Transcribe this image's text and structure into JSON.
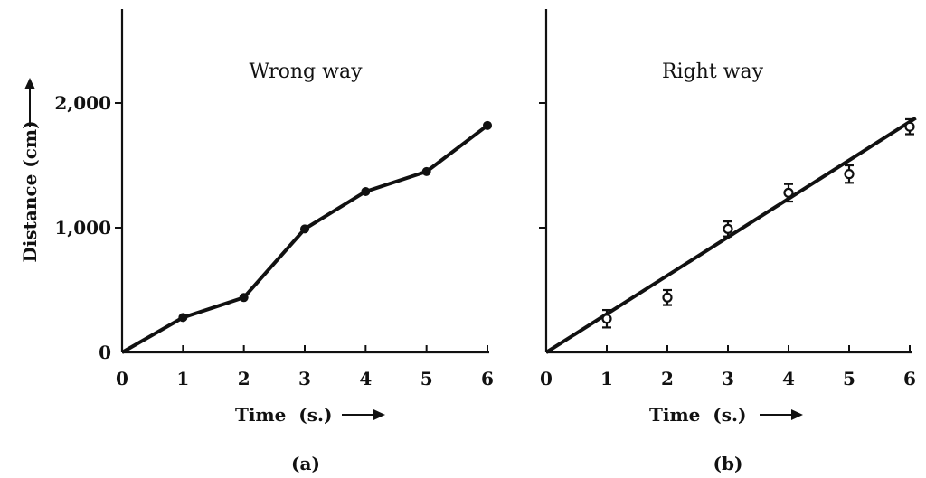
{
  "chart_data": [
    {
      "type": "line",
      "title": "Wrong way",
      "panel_label": "(a)",
      "xlabel": "Time  (s.)",
      "ylabel": "Distance (cm)",
      "x": [
        0,
        1,
        2,
        3,
        4,
        5,
        6
      ],
      "xlim": [
        0,
        6
      ],
      "ylim": [
        0,
        2800
      ],
      "xticks": [
        "0",
        "1",
        "2",
        "3",
        "4",
        "5",
        "6"
      ],
      "yticks": [
        {
          "value": 0,
          "label": "0"
        },
        {
          "value": 1000,
          "label": "1,000"
        },
        {
          "value": 2000,
          "label": "2,000"
        }
      ],
      "series": [
        {
          "values": [
            0,
            280,
            440,
            990,
            1290,
            1450,
            1820
          ]
        }
      ]
    },
    {
      "type": "scatter",
      "title": "Right way",
      "panel_label": "(b)",
      "xlabel": "Time  (s.)",
      "x": [
        1,
        2,
        3,
        4,
        5,
        6
      ],
      "xlim": [
        0,
        6
      ],
      "ylim": [
        0,
        2800
      ],
      "xticks": [
        "0",
        "1",
        "2",
        "3",
        "4",
        "5",
        "6"
      ],
      "series": [
        {
          "values": [
            270,
            440,
            990,
            1280,
            1430,
            1810
          ],
          "errors": [
            70,
            60,
            60,
            70,
            70,
            60
          ]
        }
      ],
      "fit_line": {
        "x": [
          0,
          6.1
        ],
        "y": [
          0,
          1880
        ]
      }
    }
  ]
}
